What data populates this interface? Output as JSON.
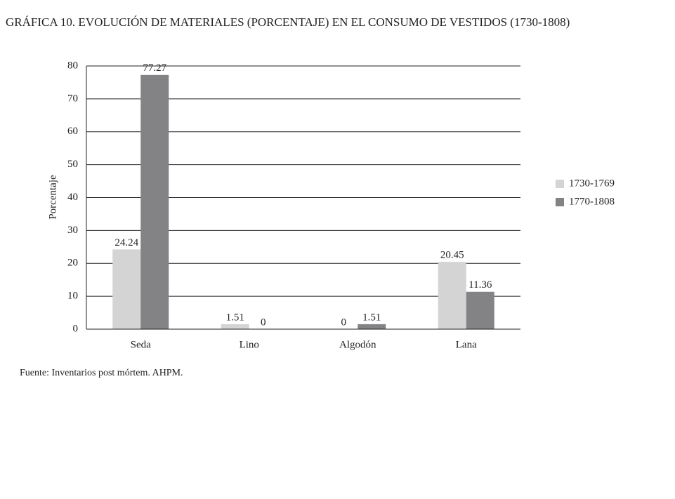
{
  "chart_data": {
    "type": "bar",
    "title": "GRÁFICA 10. EVOLUCIÓN DE MATERIALES (PORCENTAJE) EN EL CONSUMO DE VESTIDOS (1730-1808)",
    "y_label": "Porcentaje",
    "categories": [
      "Seda",
      "Lino",
      "Algodón",
      "Lana"
    ],
    "series": [
      {
        "name": "1730-1769",
        "color": "#d4d4d4",
        "values": [
          24.24,
          1.51,
          0,
          20.45
        ]
      },
      {
        "name": "1770-1808",
        "color": "#838386",
        "values": [
          77.27,
          0,
          1.51,
          11.36
        ]
      }
    ],
    "ylim": [
      0,
      80
    ],
    "yticks": [
      0,
      10,
      20,
      30,
      40,
      50,
      60,
      70,
      80
    ],
    "grid": true,
    "legend": "right",
    "source": "Fuente: Inventarios post mórtem. AHPM."
  }
}
